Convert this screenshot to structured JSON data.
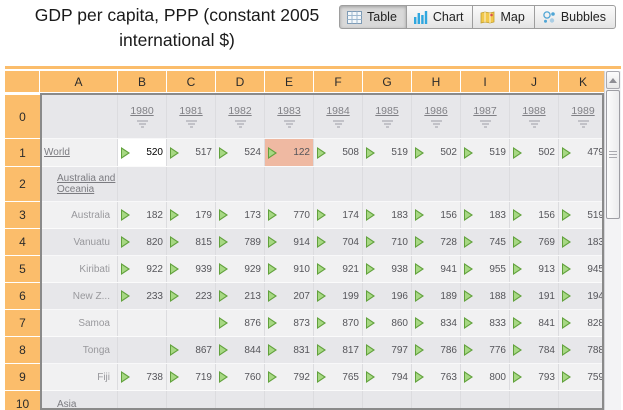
{
  "header": {
    "title_line1": "GDP per capita, PPP (constant 2005",
    "title_line2": "international $)",
    "toolbar": [
      {
        "label": "Table",
        "icon": "table-grid-icon",
        "active": true
      },
      {
        "label": "Chart",
        "icon": "bar-chart-icon",
        "active": false
      },
      {
        "label": "Map",
        "icon": "map-icon",
        "active": false
      },
      {
        "label": "Bubbles",
        "icon": "bubbles-icon",
        "active": false
      }
    ]
  },
  "grid": {
    "corner_label": "",
    "column_letters": [
      "A",
      "B",
      "C",
      "D",
      "E",
      "F",
      "G",
      "H",
      "I",
      "J",
      "K"
    ],
    "year_row_number": "0",
    "years": [
      "1980",
      "1981",
      "1982",
      "1983",
      "1984",
      "1985",
      "1986",
      "1987",
      "1988",
      "1989"
    ],
    "rows": [
      {
        "num": "1",
        "label": "World",
        "kind": "group-root",
        "values": [
          "520",
          "517",
          "524",
          "122",
          "508",
          "519",
          "502",
          "519",
          "502",
          "479"
        ]
      },
      {
        "num": "2",
        "label": "Australia and Oceania",
        "kind": "group-child",
        "values": [
          null,
          null,
          null,
          null,
          null,
          null,
          null,
          null,
          null,
          null
        ]
      },
      {
        "num": "3",
        "label": "Australia",
        "kind": "country",
        "values": [
          "182",
          "179",
          "173",
          "770",
          "174",
          "183",
          "156",
          "183",
          "156",
          "519"
        ]
      },
      {
        "num": "4",
        "label": "Vanuatu",
        "kind": "country",
        "values": [
          "820",
          "815",
          "789",
          "914",
          "704",
          "710",
          "728",
          "745",
          "769",
          "183"
        ]
      },
      {
        "num": "5",
        "label": "Kiribati",
        "kind": "country",
        "values": [
          "922",
          "939",
          "929",
          "910",
          "921",
          "938",
          "941",
          "955",
          "913",
          "945"
        ]
      },
      {
        "num": "6",
        "label": "New Z...",
        "kind": "country",
        "values": [
          "233",
          "223",
          "213",
          "207",
          "199",
          "196",
          "189",
          "188",
          "191",
          "194"
        ]
      },
      {
        "num": "7",
        "label": "Samoa",
        "kind": "country",
        "values": [
          null,
          null,
          "876",
          "873",
          "870",
          "860",
          "834",
          "833",
          "841",
          "828"
        ]
      },
      {
        "num": "8",
        "label": "Tonga",
        "kind": "country",
        "values": [
          null,
          "867",
          "844",
          "831",
          "817",
          "797",
          "786",
          "776",
          "784",
          "788"
        ]
      },
      {
        "num": "9",
        "label": "Fiji",
        "kind": "country",
        "values": [
          "738",
          "719",
          "760",
          "792",
          "765",
          "794",
          "763",
          "800",
          "793",
          "759"
        ]
      },
      {
        "num": "10",
        "label": "Asia",
        "kind": "group-child",
        "values": [
          null,
          null,
          null,
          null,
          null,
          null,
          null,
          null,
          null,
          null
        ]
      }
    ],
    "selected_cell": {
      "row": "1",
      "column": "B"
    },
    "highlighted_cell": {
      "row": "1",
      "column": "E"
    },
    "colors": {
      "header_orange": "#FBBD6B",
      "selected_cell_bg": "#FFFFFF",
      "highlight_cell_bg": "#EFB9A2",
      "trend_arrow_green": "#7FBF4D",
      "chart_icon_blue": "#2FA7DF",
      "map_icon_yellow": "#F2C84B"
    }
  }
}
